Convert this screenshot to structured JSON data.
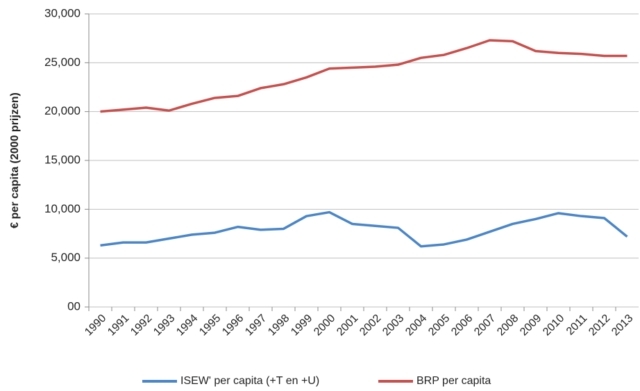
{
  "chart_data": {
    "type": "line",
    "y_label": "€ per capita (2000 prijzen)",
    "categories": [
      "1990",
      "1991",
      "1992",
      "1993",
      "1994",
      "1995",
      "1996",
      "1997",
      "1998",
      "1999",
      "2000",
      "2001",
      "2002",
      "2003",
      "2004",
      "2005",
      "2006",
      "2007",
      "2008",
      "2009",
      "2010",
      "2011",
      "2012",
      "2013"
    ],
    "series": [
      {
        "name": "ISEW' per capita (+T en +U)",
        "color": "#4a86c8",
        "values": [
          6300,
          6600,
          6600,
          7000,
          7400,
          7600,
          8200,
          7900,
          8000,
          9300,
          9700,
          8500,
          8300,
          8100,
          6200,
          6400,
          6900,
          7700,
          8500,
          9000,
          9600,
          9300,
          9100,
          7200
        ]
      },
      {
        "name": "BRP per capita",
        "color": "#c8504d",
        "values": [
          20000,
          20200,
          20400,
          20100,
          20800,
          21400,
          21600,
          22400,
          22800,
          23500,
          24400,
          24500,
          24600,
          24800,
          25500,
          25800,
          26500,
          27300,
          27200,
          26200,
          26000,
          25900,
          25700,
          25700
        ]
      }
    ],
    "ylim": [
      0,
      30000
    ],
    "yticks": [
      {
        "value": 0,
        "label": "00"
      },
      {
        "value": 5000,
        "label": "5,000"
      },
      {
        "value": 10000,
        "label": "10,000"
      },
      {
        "value": 15000,
        "label": "15,000"
      },
      {
        "value": 20000,
        "label": "20,000"
      },
      {
        "value": 25000,
        "label": "25,000"
      },
      {
        "value": 30000,
        "label": "30,000"
      }
    ],
    "grid": true
  }
}
